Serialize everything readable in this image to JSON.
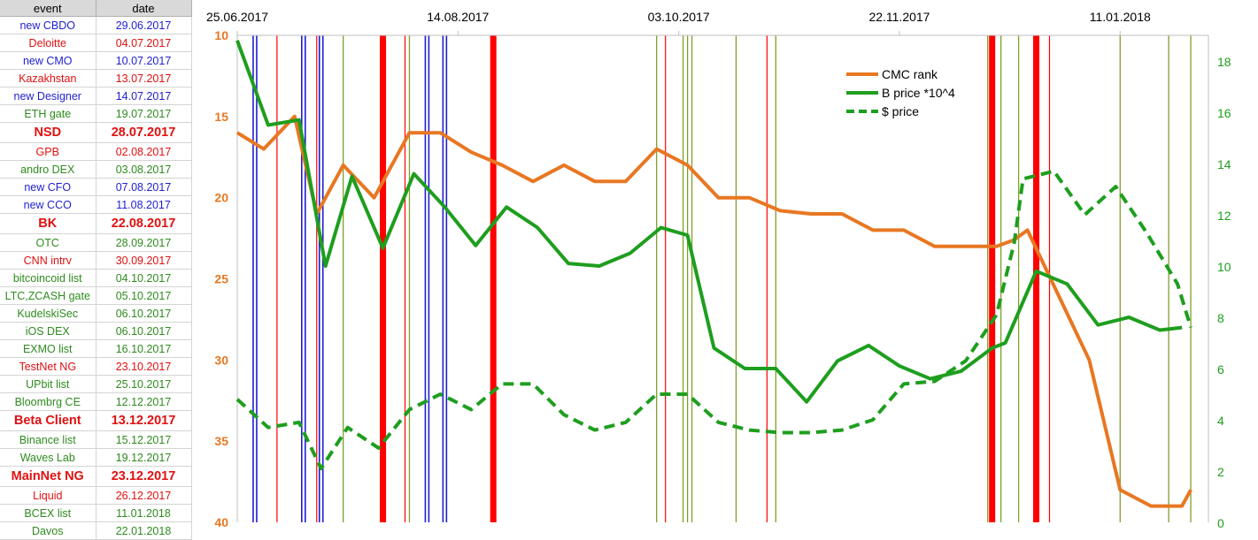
{
  "table": {
    "headers": [
      "event",
      "date"
    ],
    "rows": [
      {
        "event": "new CBDO",
        "date": "29.06.2017",
        "color": "#1f1fd0",
        "big": false
      },
      {
        "event": "Deloitte",
        "date": "04.07.2017",
        "color": "#e01010",
        "big": false
      },
      {
        "event": "new CMO",
        "date": "10.07.2017",
        "color": "#1f1fd0",
        "big": false
      },
      {
        "event": "Kazakhstan",
        "date": "13.07.2017",
        "color": "#e01010",
        "big": false
      },
      {
        "event": "new Designer",
        "date": "14.07.2017",
        "color": "#1f1fd0",
        "big": false
      },
      {
        "event": "ETH gate",
        "date": "19.07.2017",
        "color": "#2e8b1e",
        "big": false
      },
      {
        "event": "NSD",
        "date": "28.07.2017",
        "color": "#e01010",
        "big": true
      },
      {
        "event": "GPB",
        "date": "02.08.2017",
        "color": "#e01010",
        "big": false
      },
      {
        "event": "andro DEX",
        "date": "03.08.2017",
        "color": "#2e8b1e",
        "big": false
      },
      {
        "event": "new CFO",
        "date": "07.08.2017",
        "color": "#1f1fd0",
        "big": false
      },
      {
        "event": "new CCO",
        "date": "11.08.2017",
        "color": "#1f1fd0",
        "big": false
      },
      {
        "event": "BK",
        "date": "22.08.2017",
        "color": "#e01010",
        "big": true
      },
      {
        "event": "OTC",
        "date": "28.09.2017",
        "color": "#2e8b1e",
        "big": false
      },
      {
        "event": "CNN intrv",
        "date": "30.09.2017",
        "color": "#e01010",
        "big": false
      },
      {
        "event": "bitcoincoid list",
        "date": "04.10.2017",
        "color": "#2e8b1e",
        "big": false
      },
      {
        "event": "LTC,ZCASH gate",
        "date": "05.10.2017",
        "color": "#2e8b1e",
        "big": false
      },
      {
        "event": "KudelskiSec",
        "date": "06.10.2017",
        "color": "#2e8b1e",
        "big": false
      },
      {
        "event": "iOS DEX",
        "date": "06.10.2017",
        "color": "#2e8b1e",
        "big": false
      },
      {
        "event": "EXMO list",
        "date": "16.10.2017",
        "color": "#2e8b1e",
        "big": false
      },
      {
        "event": "TestNet NG",
        "date": "23.10.2017",
        "color": "#e01010",
        "big": false
      },
      {
        "event": "UPbit list",
        "date": "25.10.2017",
        "color": "#2e8b1e",
        "big": false
      },
      {
        "event": "Bloombrg CE",
        "date": "12.12.2017",
        "color": "#2e8b1e",
        "big": false
      },
      {
        "event": "Beta Client",
        "date": "13.12.2017",
        "color": "#e01010",
        "big": true
      },
      {
        "event": "Binance list",
        "date": "15.12.2017",
        "color": "#2e8b1e",
        "big": false
      },
      {
        "event": "Waves Lab",
        "date": "19.12.2017",
        "color": "#2e8b1e",
        "big": false
      },
      {
        "event": "MainNet NG",
        "date": "23.12.2017",
        "color": "#e01010",
        "big": true
      },
      {
        "event": "Liquid",
        "date": "26.12.2017",
        "color": "#e01010",
        "big": false
      },
      {
        "event": "BCEX list",
        "date": "11.01.2018",
        "color": "#2e8b1e",
        "big": false
      },
      {
        "event": "Davos",
        "date": "22.01.2018",
        "color": "#2e8b1e",
        "big": false
      }
    ]
  },
  "chart_data": {
    "type": "line",
    "x_range": [
      "25.06.2017",
      "31.01.2018"
    ],
    "x_ticks": [
      "25.06.2017",
      "14.08.2017",
      "03.10.2017",
      "22.11.2017",
      "11.01.2018"
    ],
    "y_left": {
      "ticks": [
        10,
        15,
        20,
        25,
        30,
        35,
        40
      ],
      "range": [
        10,
        40
      ],
      "inverted": true,
      "color": "#e87722"
    },
    "y_right": {
      "ticks": [
        0,
        2,
        4,
        6,
        8,
        10,
        12,
        14,
        16,
        18
      ],
      "range": [
        0,
        19
      ],
      "color": "#1e9e1e"
    },
    "legend": {
      "position": "top-right",
      "entries": [
        "CMC rank",
        "B price *10^4",
        "$ price"
      ]
    },
    "series": [
      {
        "name": "CMC rank",
        "axis": "left",
        "color": "#e87722",
        "style": "solid",
        "points": [
          [
            "25.06.2017",
            16
          ],
          [
            "01.07.2017",
            17
          ],
          [
            "08.07.2017",
            15
          ],
          [
            "13.07.2017",
            21
          ],
          [
            "19.07.2017",
            18
          ],
          [
            "26.07.2017",
            20
          ],
          [
            "03.08.2017",
            16
          ],
          [
            "10.08.2017",
            16
          ],
          [
            "17.08.2017",
            17.2
          ],
          [
            "24.08.2017",
            18
          ],
          [
            "31.08.2017",
            19
          ],
          [
            "07.09.2017",
            18
          ],
          [
            "14.09.2017",
            19
          ],
          [
            "21.09.2017",
            19
          ],
          [
            "28.09.2017",
            17
          ],
          [
            "05.10.2017",
            18
          ],
          [
            "12.10.2017",
            20
          ],
          [
            "19.10.2017",
            20
          ],
          [
            "26.10.2017",
            20.8
          ],
          [
            "02.11.2017",
            21
          ],
          [
            "09.11.2017",
            21
          ],
          [
            "16.11.2017",
            22
          ],
          [
            "23.11.2017",
            22
          ],
          [
            "30.11.2017",
            23
          ],
          [
            "07.12.2017",
            23
          ],
          [
            "14.12.2017",
            23
          ],
          [
            "18.12.2017",
            22.6
          ],
          [
            "21.12.2017",
            22
          ],
          [
            "28.12.2017",
            26
          ],
          [
            "04.01.2018",
            30
          ],
          [
            "11.01.2018",
            38
          ],
          [
            "18.01.2018",
            39
          ],
          [
            "25.01.2018",
            39
          ],
          [
            "27.01.2018",
            38
          ]
        ]
      },
      {
        "name": "B price *10^4",
        "axis": "right",
        "color": "#1e9e1e",
        "style": "solid",
        "points": [
          [
            "25.06.2017",
            18.8
          ],
          [
            "02.07.2017",
            15.5
          ],
          [
            "09.07.2017",
            15.7
          ],
          [
            "15.07.2017",
            10
          ],
          [
            "21.07.2017",
            13.5
          ],
          [
            "28.07.2017",
            10.7
          ],
          [
            "04.08.2017",
            13.6
          ],
          [
            "11.08.2017",
            12.3
          ],
          [
            "18.08.2017",
            10.8
          ],
          [
            "25.08.2017",
            12.3
          ],
          [
            "01.09.2017",
            11.5
          ],
          [
            "08.09.2017",
            10.1
          ],
          [
            "15.09.2017",
            10
          ],
          [
            "22.09.2017",
            10.5
          ],
          [
            "29.09.2017",
            11.5
          ],
          [
            "05.10.2017",
            11.2
          ],
          [
            "11.10.2017",
            6.8
          ],
          [
            "18.10.2017",
            6
          ],
          [
            "25.10.2017",
            6
          ],
          [
            "01.11.2017",
            4.7
          ],
          [
            "08.11.2017",
            6.3
          ],
          [
            "15.11.2017",
            6.9
          ],
          [
            "22.11.2017",
            6.1
          ],
          [
            "29.11.2017",
            5.6
          ],
          [
            "06.12.2017",
            5.9
          ],
          [
            "13.12.2017",
            6.8
          ],
          [
            "16.12.2017",
            7
          ],
          [
            "23.12.2017",
            9.8
          ],
          [
            "30.12.2017",
            9.3
          ],
          [
            "06.01.2018",
            7.7
          ],
          [
            "13.01.2018",
            8
          ],
          [
            "20.01.2018",
            7.5
          ],
          [
            "25.01.2018",
            7.6
          ]
        ]
      },
      {
        "name": "$ price",
        "axis": "right",
        "color": "#1e9e1e",
        "style": "dashed",
        "points": [
          [
            "25.06.2017",
            4.8
          ],
          [
            "02.07.2017",
            3.7
          ],
          [
            "09.07.2017",
            3.9
          ],
          [
            "14.07.2017",
            2.1
          ],
          [
            "20.07.2017",
            3.7
          ],
          [
            "27.07.2017",
            2.9
          ],
          [
            "03.08.2017",
            4.4
          ],
          [
            "10.08.2017",
            5
          ],
          [
            "17.08.2017",
            4.4
          ],
          [
            "24.08.2017",
            5.4
          ],
          [
            "31.08.2017",
            5.4
          ],
          [
            "07.09.2017",
            4.2
          ],
          [
            "14.09.2017",
            3.6
          ],
          [
            "21.09.2017",
            3.9
          ],
          [
            "28.09.2017",
            5
          ],
          [
            "05.10.2017",
            5
          ],
          [
            "12.10.2017",
            3.9
          ],
          [
            "19.10.2017",
            3.6
          ],
          [
            "26.10.2017",
            3.5
          ],
          [
            "02.11.2017",
            3.5
          ],
          [
            "09.11.2017",
            3.6
          ],
          [
            "16.11.2017",
            4
          ],
          [
            "23.11.2017",
            5.4
          ],
          [
            "30.11.2017",
            5.5
          ],
          [
            "07.12.2017",
            6.3
          ],
          [
            "14.12.2017",
            8.1
          ],
          [
            "18.12.2017",
            10.9
          ],
          [
            "20.12.2017",
            13.4
          ],
          [
            "27.12.2017",
            13.7
          ],
          [
            "03.01.2018",
            12
          ],
          [
            "10.01.2018",
            13.1
          ],
          [
            "17.01.2018",
            11.3
          ],
          [
            "24.01.2018",
            9.3
          ],
          [
            "27.01.2018",
            7.6
          ]
        ]
      }
    ],
    "event_lines": [
      {
        "date": "29.06.2017",
        "type": "blue"
      },
      {
        "date": "04.07.2017",
        "type": "red"
      },
      {
        "date": "10.07.2017",
        "type": "blue"
      },
      {
        "date": "13.07.2017",
        "type": "red"
      },
      {
        "date": "14.07.2017",
        "type": "blue"
      },
      {
        "date": "19.07.2017",
        "type": "green"
      },
      {
        "date": "28.07.2017",
        "type": "red-big"
      },
      {
        "date": "02.08.2017",
        "type": "red"
      },
      {
        "date": "03.08.2017",
        "type": "green"
      },
      {
        "date": "07.08.2017",
        "type": "blue"
      },
      {
        "date": "11.08.2017",
        "type": "blue"
      },
      {
        "date": "22.08.2017",
        "type": "red-big"
      },
      {
        "date": "28.09.2017",
        "type": "green"
      },
      {
        "date": "30.09.2017",
        "type": "red"
      },
      {
        "date": "04.10.2017",
        "type": "green"
      },
      {
        "date": "05.10.2017",
        "type": "green"
      },
      {
        "date": "06.10.2017",
        "type": "green"
      },
      {
        "date": "16.10.2017",
        "type": "green"
      },
      {
        "date": "23.10.2017",
        "type": "red"
      },
      {
        "date": "25.10.2017",
        "type": "green"
      },
      {
        "date": "12.12.2017",
        "type": "green"
      },
      {
        "date": "13.12.2017",
        "type": "red-big"
      },
      {
        "date": "15.12.2017",
        "type": "green"
      },
      {
        "date": "19.12.2017",
        "type": "green"
      },
      {
        "date": "23.12.2017",
        "type": "red-big"
      },
      {
        "date": "26.12.2017",
        "type": "red"
      },
      {
        "date": "11.01.2018",
        "type": "green"
      },
      {
        "date": "22.01.2018",
        "type": "green"
      },
      {
        "date": "27.01.2018",
        "type": "green"
      }
    ]
  },
  "colors": {
    "blue": "#1f1fd0",
    "red": "#ff0000",
    "green": "#7f9f2a",
    "rank": "#e87722",
    "price": "#1e9e1e"
  }
}
